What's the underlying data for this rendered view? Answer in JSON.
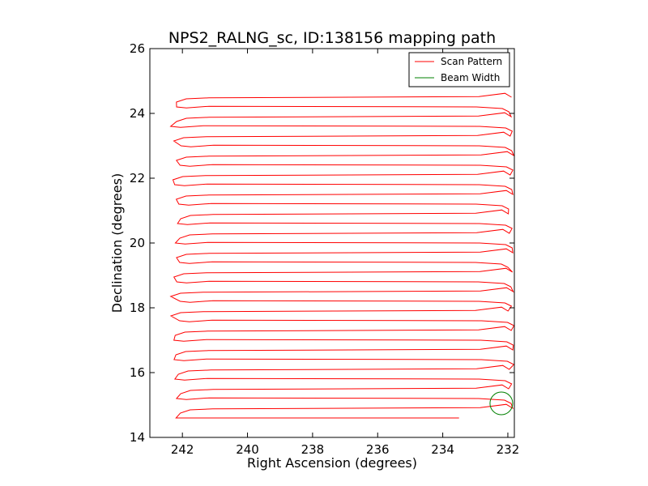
{
  "chart_data": {
    "type": "line",
    "title": "NPS2_RALNG_sc, ID:138156 mapping path",
    "xlabel": "Right Ascension (degrees)",
    "ylabel": "Declination (degrees)",
    "xlim": [
      243,
      231.8
    ],
    "ylim": [
      14,
      26
    ],
    "x_inverted": true,
    "xticks": [
      242,
      240,
      238,
      236,
      234,
      232
    ],
    "yticks": [
      14,
      16,
      18,
      20,
      22,
      24,
      26
    ],
    "grid": false,
    "legend_position": "top-right",
    "series": [
      {
        "name": "Scan Pattern",
        "color": "#ff0000",
        "description_rows": {
          "dec_start": 14.6,
          "dec_end": 24.5,
          "row_spacing": 0.3,
          "ra_left": 242.2,
          "ra_right": 231.9,
          "last_row_ra_end": 233.5
        }
      },
      {
        "name": "Beam Width",
        "color": "#008000",
        "circle": {
          "ra": 232.2,
          "dec": 15.05,
          "radius": 0.35
        }
      }
    ]
  }
}
